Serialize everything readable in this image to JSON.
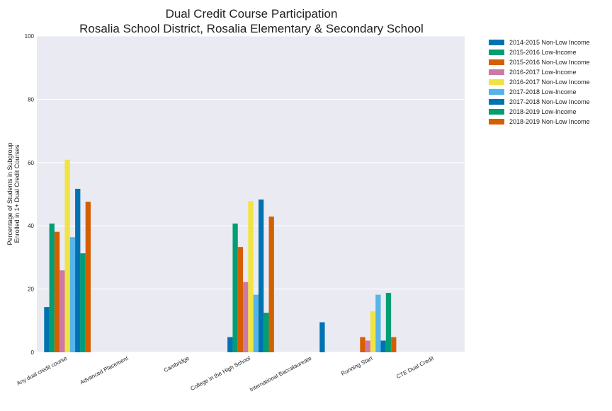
{
  "chart_data": {
    "type": "bar",
    "title": "Dual Credit Course Participation",
    "subtitle": "Rosalia School District, Rosalia Elementary & Secondary School",
    "xlabel": "",
    "ylabel_line1": "Percentage of Students in Subgroup",
    "ylabel_line2": "Enrolled in 1+ Dual Credit Courses",
    "ylim": [
      0,
      100
    ],
    "yticks": [
      "0",
      "20",
      "40",
      "60",
      "80",
      "100"
    ],
    "grid": true,
    "legend_position": "outside-top-right",
    "categories": [
      "Any dual credit course",
      "Advanced Placement",
      "Cambridge",
      "College in the High School",
      "International Baccalaureate",
      "Running Start",
      "CTE Dual Credit"
    ],
    "series": [
      {
        "name": "2014-2015 Non-Low Income",
        "color": "#0072b2",
        "values": [
          14.3,
          null,
          null,
          4.8,
          null,
          null,
          null
        ]
      },
      {
        "name": "2015-2016 Low-Income",
        "color": "#009e73",
        "values": [
          40.7,
          null,
          null,
          40.7,
          null,
          null,
          null
        ]
      },
      {
        "name": "2015-2016 Non-Low Income",
        "color": "#d55e00",
        "values": [
          38.1,
          null,
          null,
          33.3,
          null,
          4.8,
          null
        ]
      },
      {
        "name": "2016-2017 Low-Income",
        "color": "#cc79a7",
        "values": [
          25.9,
          null,
          null,
          22.2,
          null,
          3.7,
          null
        ]
      },
      {
        "name": "2016-2017 Non-Low Income",
        "color": "#f0e442",
        "values": [
          60.9,
          null,
          null,
          47.8,
          null,
          13.0,
          null
        ]
      },
      {
        "name": "2017-2018 Low-Income",
        "color": "#56b4e9",
        "values": [
          36.4,
          null,
          null,
          18.2,
          null,
          18.2,
          null
        ]
      },
      {
        "name": "2017-2018 Non-Low Income",
        "color": "#0072b2",
        "values": [
          51.7,
          null,
          null,
          48.3,
          9.5,
          3.7,
          null
        ]
      },
      {
        "name": "2018-2019 Low-Income",
        "color": "#009e73",
        "values": [
          31.3,
          null,
          null,
          12.5,
          null,
          18.8,
          null
        ]
      },
      {
        "name": "2018-2019 Non-Low Income",
        "color": "#d55e00",
        "values": [
          47.6,
          null,
          null,
          42.9,
          null,
          4.8,
          null
        ]
      }
    ]
  }
}
